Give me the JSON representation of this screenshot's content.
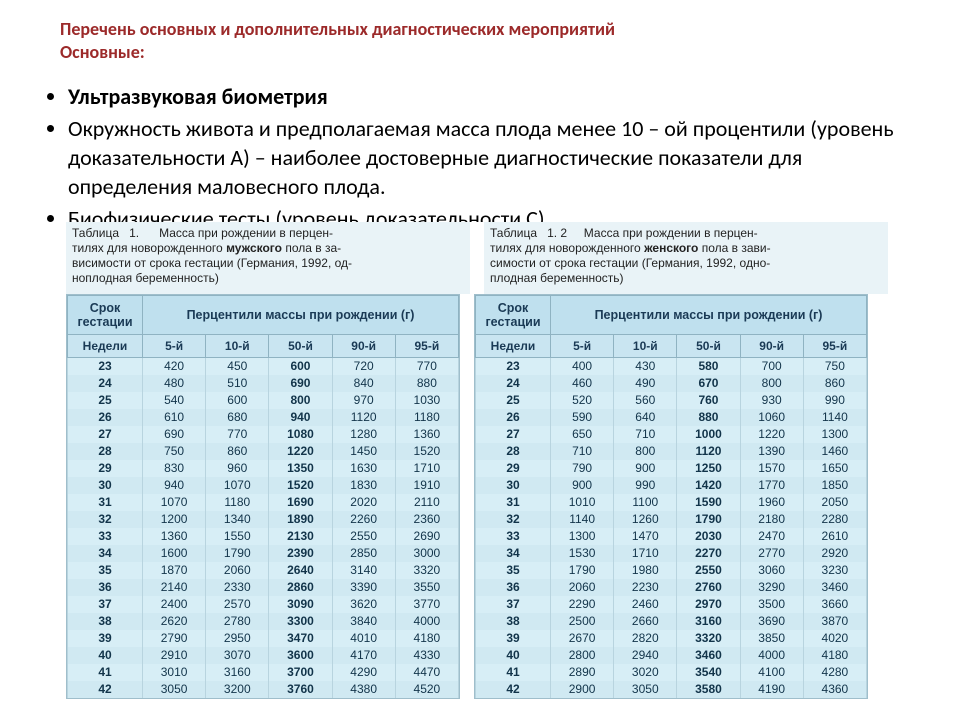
{
  "title_line1": "Перечень основных и дополнительных диагностических мероприятий",
  "title_line2": "Основные:",
  "bullets": {
    "b1": "Ультразвуковая биометрия",
    "b2": "Окружность живота и предполагаемая масса плода менее 10 – ой процентили (уровень доказательности А) – наиболее достоверные диагностические показатели для определения маловесного плода.",
    "b3": "Биофизические тесты (уровень доказательности С)"
  },
  "table_meta": {
    "caption_prefix": "Таблица",
    "caption_num_left": "1.",
    "caption_num_right": "1.  2",
    "caption_body_left_1": "Масса при рождении в перцен-",
    "caption_body_left_2": "тилях для новорожденного ",
    "caption_body_left_sex": "мужского",
    "caption_body_left_3": " пола в за-",
    "caption_body_left_4": "висимости от срока гестации (Германия, 1992, од-",
    "caption_body_left_5": "ноплодная беременность)",
    "caption_body_right_1": "Масса при рождении в перцен-",
    "caption_body_right_2": "тилях для новорожденного ",
    "caption_body_right_sex": "женского",
    "caption_body_right_3": " пола в зави-",
    "caption_body_right_4": "симости от срока гестации (Германия, 1992, одно-",
    "caption_body_right_5": "плодная беременность)",
    "col_gest_1": "Срок",
    "col_gest_2": "гестации",
    "col_perc_header": "Перцентили массы при рождении (г)",
    "col_weeks": "Недели",
    "percentile_suffix": "-й",
    "percentiles": [
      "5",
      "10",
      "50",
      "90",
      "95"
    ]
  },
  "weeks": [
    "23",
    "24",
    "25",
    "26",
    "27",
    "28",
    "29",
    "30",
    "31",
    "32",
    "33",
    "34",
    "35",
    "36",
    "37",
    "38",
    "39",
    "40",
    "41",
    "42"
  ],
  "male": [
    [
      420,
      450,
      600,
      720,
      770
    ],
    [
      480,
      510,
      690,
      840,
      880
    ],
    [
      540,
      600,
      800,
      970,
      1030
    ],
    [
      610,
      680,
      940,
      1120,
      1180
    ],
    [
      690,
      770,
      1080,
      1280,
      1360
    ],
    [
      750,
      860,
      1220,
      1450,
      1520
    ],
    [
      830,
      960,
      1350,
      1630,
      1710
    ],
    [
      940,
      1070,
      1520,
      1830,
      1910
    ],
    [
      1070,
      1180,
      1690,
      2020,
      2110
    ],
    [
      1200,
      1340,
      1890,
      2260,
      2360
    ],
    [
      1360,
      1550,
      2130,
      2550,
      2690
    ],
    [
      1600,
      1790,
      2390,
      2850,
      3000
    ],
    [
      1870,
      2060,
      2640,
      3140,
      3320
    ],
    [
      2140,
      2330,
      2860,
      3390,
      3550
    ],
    [
      2400,
      2570,
      3090,
      3620,
      3770
    ],
    [
      2620,
      2780,
      3300,
      3840,
      4000
    ],
    [
      2790,
      2950,
      3470,
      4010,
      4180
    ],
    [
      2910,
      3070,
      3600,
      4170,
      4330
    ],
    [
      3010,
      3160,
      3700,
      4290,
      4470
    ],
    [
      3050,
      3200,
      3760,
      4380,
      4520
    ]
  ],
  "female": [
    [
      400,
      430,
      580,
      700,
      750
    ],
    [
      460,
      490,
      670,
      800,
      860
    ],
    [
      520,
      560,
      760,
      930,
      990
    ],
    [
      590,
      640,
      880,
      1060,
      1140
    ],
    [
      650,
      710,
      1000,
      1220,
      1300
    ],
    [
      710,
      800,
      1120,
      1390,
      1460
    ],
    [
      790,
      900,
      1250,
      1570,
      1650
    ],
    [
      900,
      990,
      1420,
      1770,
      1850
    ],
    [
      1010,
      1100,
      1590,
      1960,
      2050
    ],
    [
      1140,
      1260,
      1790,
      2180,
      2280
    ],
    [
      1300,
      1470,
      2030,
      2470,
      2610
    ],
    [
      1530,
      1710,
      2270,
      2770,
      2920
    ],
    [
      1790,
      1980,
      2550,
      3060,
      3230
    ],
    [
      2060,
      2230,
      2760,
      3290,
      3460
    ],
    [
      2290,
      2460,
      2970,
      3500,
      3660
    ],
    [
      2500,
      2660,
      3160,
      3690,
      3870
    ],
    [
      2670,
      2820,
      3320,
      3850,
      4020
    ],
    [
      2800,
      2940,
      3460,
      4000,
      4180
    ],
    [
      2890,
      3020,
      3540,
      4100,
      4280
    ],
    [
      2900,
      3050,
      3580,
      4190,
      4360
    ]
  ],
  "style": {
    "title_color": "#9c2a2a",
    "table_header_bg": "#bfe0ee",
    "table_body_bg": "#d7eef6",
    "table_border": "#8fb3c2",
    "text_color": "#12344a",
    "caption_bg": "#e9f3f7"
  }
}
